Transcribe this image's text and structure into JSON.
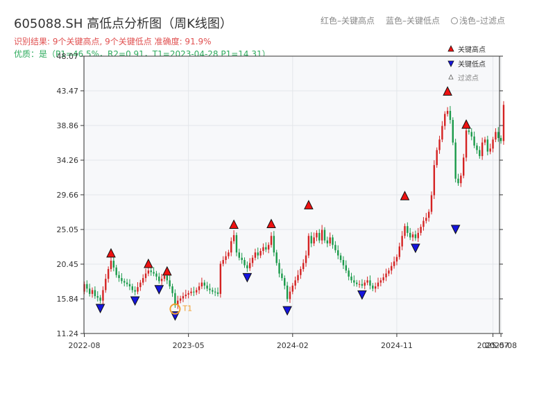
{
  "title": "605088.SH 高低点分析图（周K线图）",
  "header_legend": {
    "red": "红色–关键高点",
    "blue": "蓝色–关键低点",
    "light": "浅色–过滤点"
  },
  "result_text": "识别结果: 9个关键高点, 9个关键低点 准确度: 91.9%",
  "quality_text": "优质：是（P1=46.5%，R2=0.91，T1=2023-04-28 P1=14.31）",
  "colors": {
    "up": "#d42222",
    "down": "#1a9a4a",
    "high_marker": "#ee1111",
    "low_marker": "#1515dd",
    "t1_ring": "#f0a030",
    "plot_bg": "#f7f8fa",
    "grid": "#e3e6ea",
    "axis": "#333333"
  },
  "chart_data": {
    "type": "candlestick",
    "period": "weekly",
    "ylim": [
      11.24,
      48.07
    ],
    "y_ticks": [
      "11.24",
      "15.84",
      "20.45",
      "25.05",
      "29.66",
      "34.26",
      "38.86",
      "43.47",
      "48.07"
    ],
    "x_ticks": [
      {
        "label": "2022-08",
        "bar": 0
      },
      {
        "label": "2023-05",
        "bar": 39
      },
      {
        "label": "2024-02",
        "bar": 78
      },
      {
        "label": "2024-11",
        "bar": 117
      },
      {
        "label": "2025-07",
        "bar": 153
      },
      {
        "label": "2025-08",
        "bar": 156
      }
    ],
    "legend": {
      "position": "top-right",
      "items": [
        {
          "label": "关键高点",
          "marker": "up-triangle"
        },
        {
          "label": "关键低点",
          "marker": "down-triangle"
        },
        {
          "label": "过滤点",
          "marker": "small-triangle"
        }
      ]
    },
    "key_highs": [
      {
        "bar": 10,
        "price": 21.2
      },
      {
        "bar": 24,
        "price": 19.8
      },
      {
        "bar": 31,
        "price": 18.8
      },
      {
        "bar": 56,
        "price": 25.0
      },
      {
        "bar": 70,
        "price": 25.1
      },
      {
        "bar": 84,
        "price": 27.6
      },
      {
        "bar": 120,
        "price": 28.8
      },
      {
        "bar": 136,
        "price": 42.7
      },
      {
        "bar": 143,
        "price": 38.3
      }
    ],
    "key_lows": [
      {
        "bar": 6,
        "price": 15.3
      },
      {
        "bar": 19,
        "price": 16.3
      },
      {
        "bar": 28,
        "price": 17.8
      },
      {
        "bar": 34,
        "price": 14.31
      },
      {
        "bar": 61,
        "price": 19.4
      },
      {
        "bar": 76,
        "price": 15.0
      },
      {
        "bar": 104,
        "price": 17.1
      },
      {
        "bar": 124,
        "price": 23.3
      },
      {
        "bar": 139,
        "price": 25.8
      }
    ],
    "t1": {
      "label": "T1",
      "date": "2023-04-28",
      "bar": 34,
      "price": 14.31
    },
    "close": [
      17.8,
      17.2,
      16.5,
      17.0,
      16.2,
      16.0,
      15.6,
      17.0,
      18.5,
      19.8,
      20.9,
      20.0,
      19.0,
      18.6,
      18.2,
      18.0,
      17.8,
      17.5,
      17.0,
      16.8,
      17.4,
      18.0,
      18.6,
      19.2,
      19.6,
      19.4,
      19.2,
      18.8,
      18.2,
      18.5,
      18.9,
      18.3,
      17.5,
      16.6,
      15.0,
      15.6,
      15.9,
      16.2,
      16.4,
      16.6,
      16.8,
      16.7,
      17.0,
      17.5,
      18.0,
      17.6,
      17.2,
      17.0,
      16.8,
      16.7,
      16.5,
      20.5,
      21.0,
      21.5,
      22.0,
      23.5,
      24.3,
      22.0,
      21.3,
      21.0,
      20.3,
      19.9,
      20.6,
      21.3,
      22.0,
      21.6,
      22.2,
      22.7,
      22.4,
      23.0,
      24.2,
      22.0,
      20.6,
      19.2,
      18.6,
      17.6,
      15.8,
      16.8,
      17.6,
      18.3,
      19.0,
      19.8,
      20.6,
      21.6,
      24.2,
      23.2,
      24.0,
      24.6,
      23.6,
      25.0,
      23.6,
      23.2,
      24.0,
      23.0,
      22.3,
      21.6,
      21.0,
      20.3,
      19.6,
      18.8,
      18.3,
      18.0,
      17.8,
      17.8,
      17.6,
      18.0,
      18.3,
      17.6,
      17.2,
      17.5,
      18.0,
      18.3,
      18.7,
      19.2,
      19.6,
      20.2,
      20.8,
      21.4,
      22.8,
      24.2,
      25.5,
      24.6,
      24.0,
      24.4,
      23.9,
      24.6,
      25.4,
      26.2,
      26.6,
      27.4,
      29.6,
      33.6,
      35.6,
      37.0,
      38.8,
      40.4,
      40.8,
      39.6,
      36.6,
      31.8,
      31.2,
      32.2,
      34.6,
      38.2,
      38.0,
      37.4,
      36.2,
      35.6,
      34.8,
      36.6,
      37.0,
      35.4,
      35.8,
      37.0,
      38.0,
      37.2,
      36.8,
      41.6
    ]
  }
}
